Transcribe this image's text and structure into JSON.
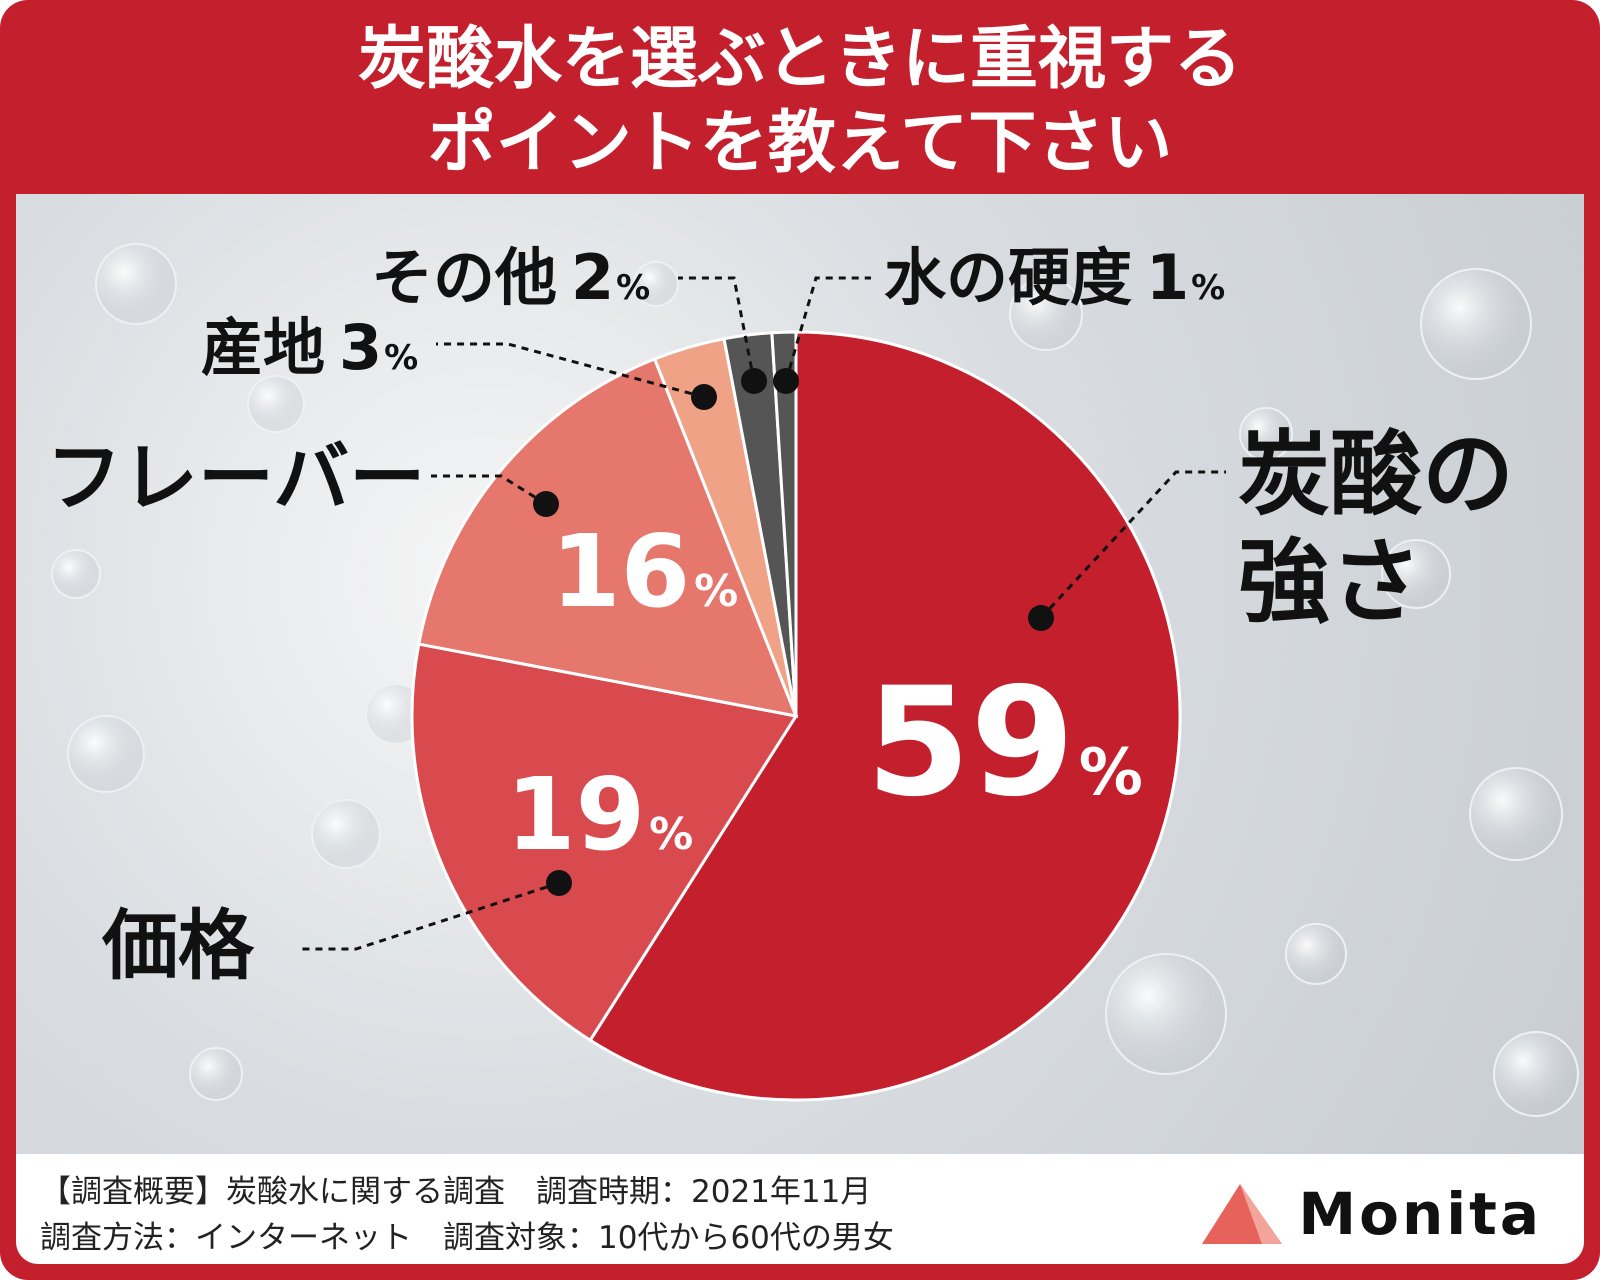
{
  "title_lines": [
    "炭酸水を選ぶときに重視する",
    "ポイントを教えて下さい"
  ],
  "chart_data": {
    "type": "pie",
    "title": "炭酸水を選ぶときに重視するポイントを教えて下さい",
    "unit": "%",
    "slices": [
      {
        "label": "炭酸の強さ",
        "value": 59,
        "color": "#c41f2d"
      },
      {
        "label": "価格",
        "value": 19,
        "color": "#d84a4d"
      },
      {
        "label": "フレーバー",
        "value": 16,
        "color": "#e6776d"
      },
      {
        "label": "産地",
        "value": 3,
        "color": "#f0a286"
      },
      {
        "label": "その他",
        "value": 2,
        "color": "#555555"
      },
      {
        "label": "水の硬度",
        "value": 1,
        "color": "#555555"
      }
    ]
  },
  "labels": {
    "strength_line1": "炭酸の",
    "strength_line2": "強さ",
    "price": "価格",
    "flavor": "フレーバー",
    "origin": "産地",
    "other": "その他",
    "hardness": "水の硬度",
    "pct_59": "59",
    "pct_19": "19",
    "pct_16": "16",
    "pct_3": "3",
    "pct_2": "2",
    "pct_1": "1",
    "pct_sign": "%"
  },
  "footer": {
    "line1": "【調査概要】炭酸水に関する調査　調査時期：2021年11月",
    "line2": "調査方法：インターネット　調査対象：10代から60代の男女"
  },
  "brand": {
    "name": "Monita",
    "accent": "#e8625c"
  }
}
